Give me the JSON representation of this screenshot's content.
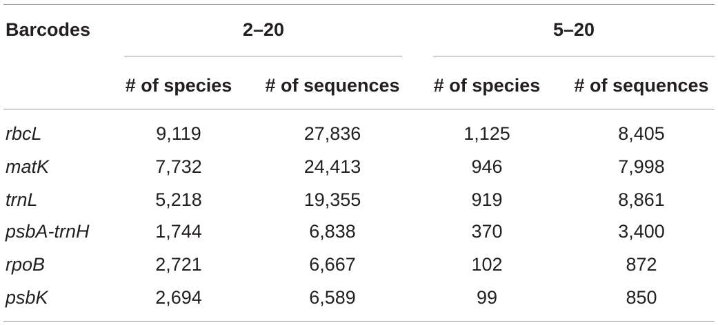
{
  "table": {
    "stub_header": "Barcodes",
    "groups": [
      {
        "label": "2–20"
      },
      {
        "label": "5–20"
      }
    ],
    "subheaders": [
      "# of species",
      "# of sequences",
      "# of species",
      "# of sequences"
    ],
    "rows": [
      {
        "barcode": "rbcL",
        "cells": [
          "9,119",
          "27,836",
          "1,125",
          "8,405"
        ]
      },
      {
        "barcode": "matK",
        "cells": [
          "7,732",
          "24,413",
          "946",
          "7,998"
        ]
      },
      {
        "barcode": "trnL",
        "cells": [
          "5,218",
          "19,355",
          "919",
          "8,861"
        ]
      },
      {
        "barcode": "psbA-trnH",
        "cells": [
          "1,744",
          "6,838",
          "370",
          "3,400"
        ]
      },
      {
        "barcode": "rpoB",
        "cells": [
          "2,721",
          "6,667",
          "102",
          "872"
        ]
      },
      {
        "barcode": "psbK",
        "cells": [
          "2,694",
          "6,589",
          "99",
          "850"
        ]
      }
    ]
  }
}
